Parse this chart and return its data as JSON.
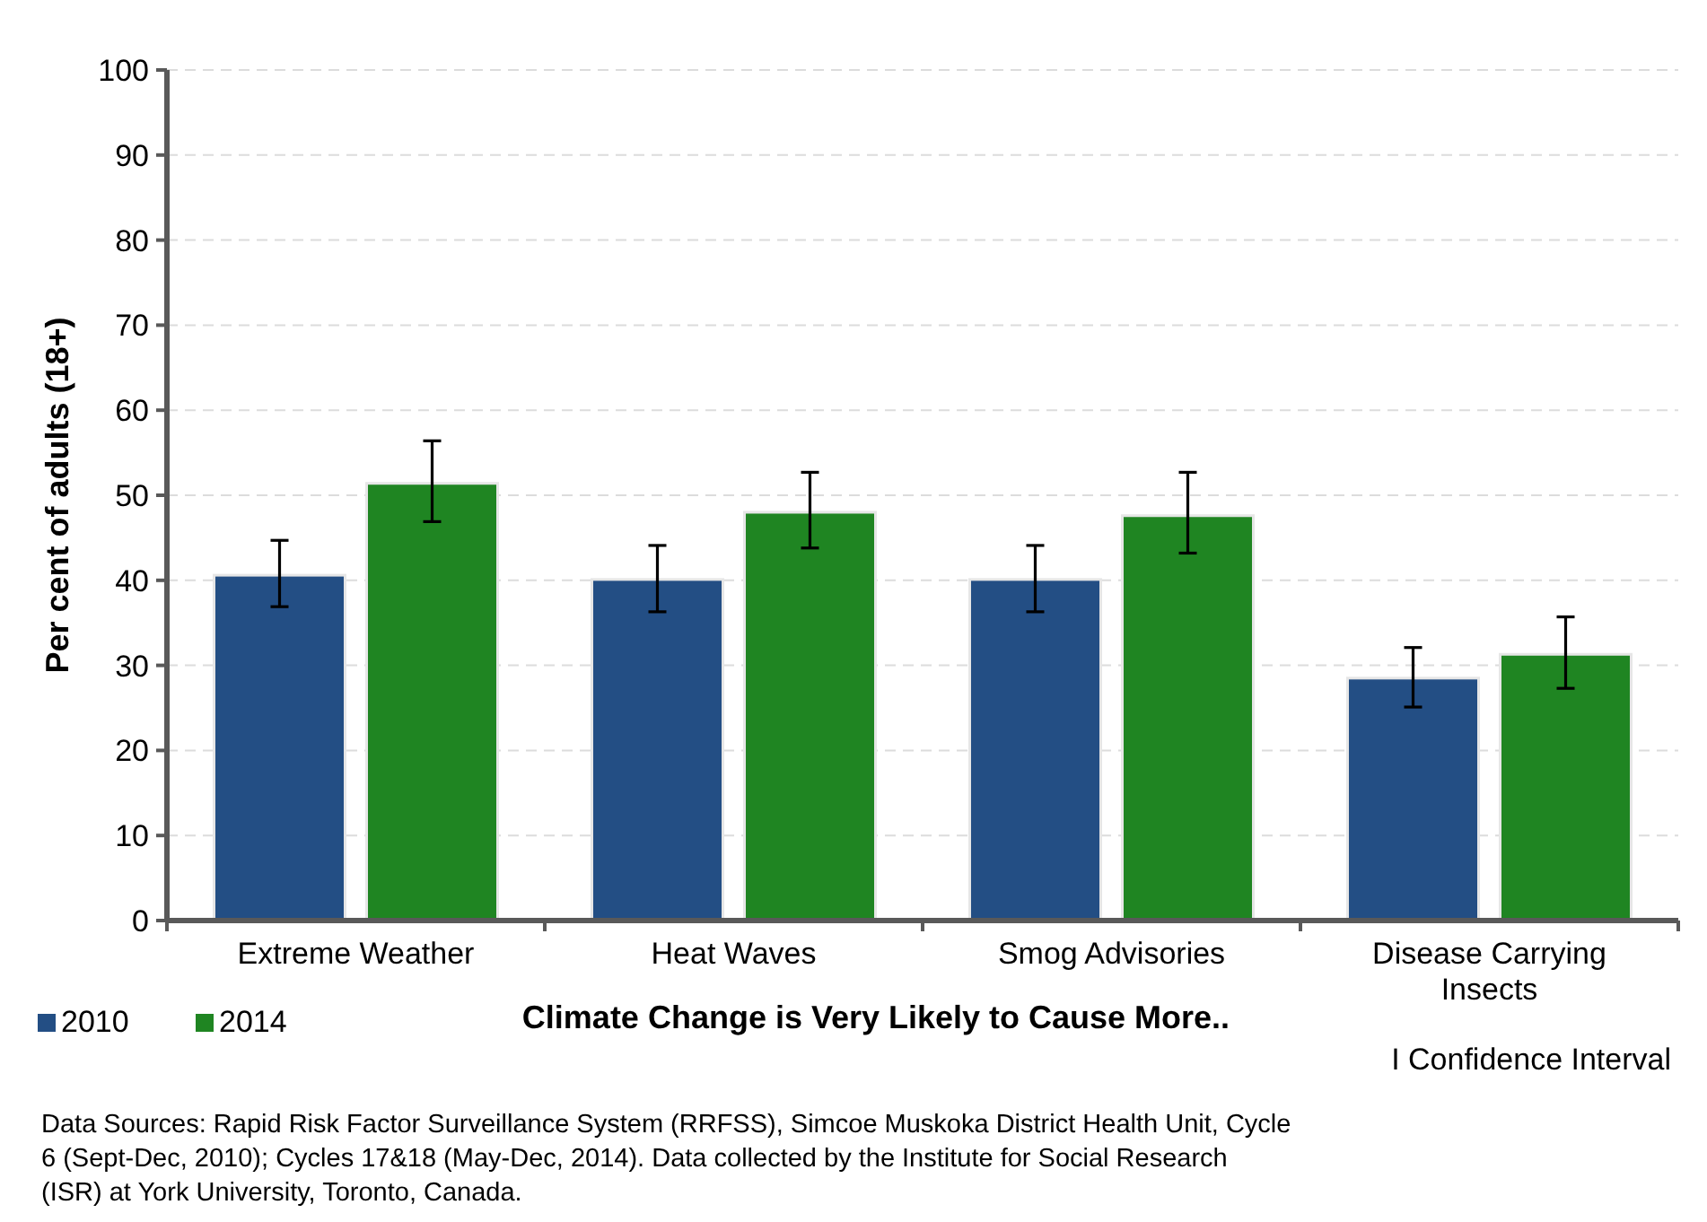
{
  "chart_data": {
    "type": "bar",
    "xlabel": "Climate Change is Very Likely to Cause More..",
    "ylabel": "Per cent of adults (18+)",
    "categories": [
      "Extreme Weather",
      "Heat Waves",
      "Smog Advisories",
      "Disease Carrying Insects"
    ],
    "series": [
      {
        "name": "2010",
        "color": "#234e84",
        "values": [
          40.6,
          40.1,
          40.1,
          28.5
        ],
        "errors": [
          [
            36.9,
            44.7
          ],
          [
            36.3,
            44.1
          ],
          [
            36.3,
            44.1
          ],
          [
            25.1,
            32.1
          ]
        ]
      },
      {
        "name": "2014",
        "color": "#1f8522",
        "values": [
          51.4,
          48.0,
          47.6,
          31.3
        ],
        "errors": [
          [
            46.9,
            56.4
          ],
          [
            43.8,
            52.7
          ],
          [
            43.2,
            52.7
          ],
          [
            27.3,
            35.7
          ]
        ]
      }
    ],
    "ylim": [
      0,
      100
    ],
    "yticks": [
      0,
      10,
      20,
      30,
      40,
      50,
      60,
      70,
      80,
      90,
      100
    ],
    "grid": "y",
    "legend": "bottom left",
    "annotations": [
      "I Confidence Interval",
      "Data Sources: Rapid Risk Factor Surveillance System (RRFSS), Simcoe Muskoka District Health Unit, Cycle 6 (Sept-Dec, 2010); Cycles 17&18 (May-Dec, 2014). Data collected by the Institute for Social Research (ISR) at York University, Toronto, Canada."
    ]
  }
}
